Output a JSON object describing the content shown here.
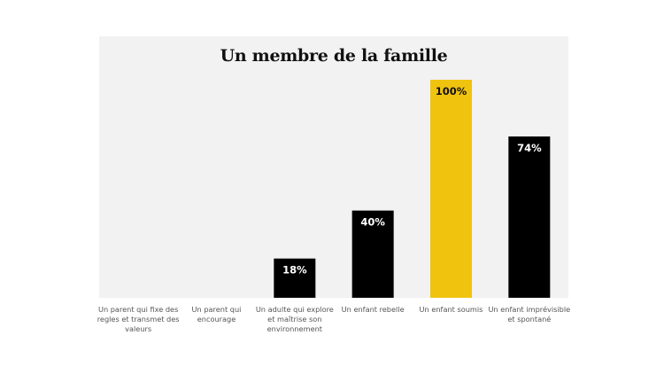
{
  "chart_data": {
    "type": "bar",
    "title": "Un membre de la famille",
    "xlabel": "",
    "ylabel": "",
    "ylim": [
      0,
      100
    ],
    "grid": false,
    "categories": [
      "Un parent qui fixe des regles et transmet des valeurs",
      "Un parent qui encourage",
      "Un adulte qui explore et maîtrise son environnement",
      "Un enfant rebelle",
      "Un enfant soumis",
      "Un enfant imprévisible et spontané"
    ],
    "values": [
      0,
      0,
      18,
      40,
      100,
      74
    ],
    "data_labels": [
      "",
      "",
      "18%",
      "40%",
      "100%",
      "74%"
    ],
    "colors": {
      "bar": "#000000",
      "highlight_bar": "#f0c30f",
      "bar_label": "#ffffff",
      "highlight_label": "#111111",
      "background": "#f2f2f2"
    },
    "highlight_index": 4
  }
}
